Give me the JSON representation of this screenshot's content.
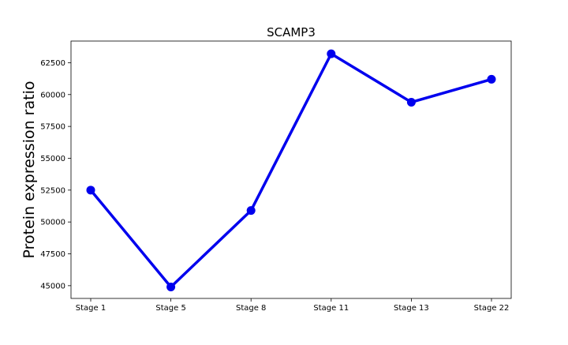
{
  "chart_data": {
    "type": "line",
    "title": "SCAMP3",
    "xlabel": "",
    "ylabel": "Protein expression ratio",
    "categories": [
      "Stage 1",
      "Stage 5",
      "Stage 8",
      "Stage 11",
      "Stage 13",
      "Stage 22"
    ],
    "series": [
      {
        "values": [
          52500,
          44900,
          50900,
          63200,
          59400,
          61200
        ],
        "color": "#0000ee"
      }
    ],
    "ylim": [
      44000,
      64200
    ],
    "yticks": [
      45000,
      47500,
      50000,
      52500,
      55000,
      57500,
      60000,
      62500
    ],
    "ytick_labels": [
      "45000",
      "47500",
      "50000",
      "52500",
      "55000",
      "57500",
      "60000",
      "62500"
    ],
    "grid": false,
    "legend": "none"
  }
}
